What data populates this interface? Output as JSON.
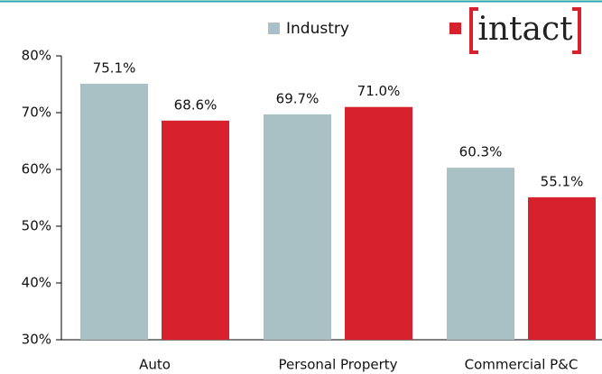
{
  "chart_data": {
    "type": "bar",
    "categories": [
      "Auto",
      "Personal Property",
      "Commercial P&C"
    ],
    "series": [
      {
        "name": "Industry",
        "color": "#a9c0c5",
        "values": [
          75.1,
          69.7,
          60.3
        ],
        "value_labels": [
          "75.1%",
          "69.7%",
          "60.3%"
        ]
      },
      {
        "name": "intact",
        "color": "#d7222e",
        "values": [
          68.6,
          71.0,
          55.1
        ],
        "value_labels": [
          "68.6%",
          "71.0%",
          "55.1%"
        ]
      }
    ],
    "ylim": [
      30,
      80
    ],
    "yticks": [
      {
        "value": 30,
        "label": "30%"
      },
      {
        "value": 40,
        "label": "40%"
      },
      {
        "value": 50,
        "label": "50%"
      },
      {
        "value": 60,
        "label": "60%"
      },
      {
        "value": 70,
        "label": "70%"
      },
      {
        "value": 80,
        "label": "80%"
      }
    ],
    "legend": "top"
  }
}
